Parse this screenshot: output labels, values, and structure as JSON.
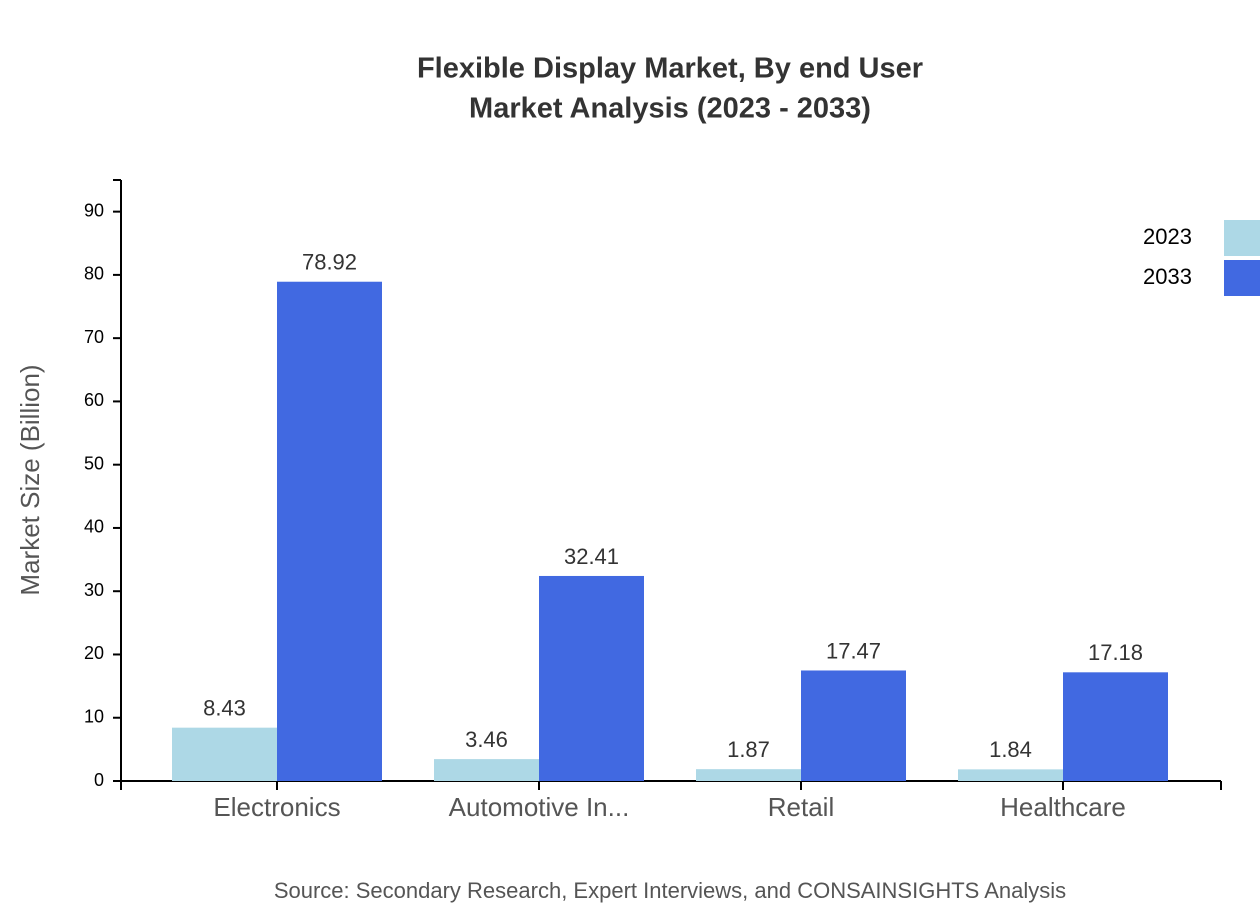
{
  "chart_data": {
    "type": "bar",
    "title": "Flexible Display Market, By end User",
    "subtitle": "Market Analysis (2023 - 2033)",
    "y_label": "Market Size (Billion)",
    "source": "Source: Secondary Research, Expert Interviews, and CONSAINSIGHTS Analysis",
    "categories": [
      "Electronics",
      "Automotive In...",
      "Retail",
      "Healthcare"
    ],
    "series": [
      {
        "name": "2023",
        "color": "#add8e6",
        "values": [
          8.43,
          3.46,
          1.87,
          1.84
        ]
      },
      {
        "name": "2033",
        "color": "#4169e1",
        "values": [
          78.92,
          32.41,
          17.47,
          17.18
        ]
      }
    ],
    "ylim": [
      0,
      95
    ],
    "yticks": [
      0,
      10,
      20,
      30,
      40,
      50,
      60,
      70,
      80,
      90
    ],
    "legend": "top-right"
  }
}
